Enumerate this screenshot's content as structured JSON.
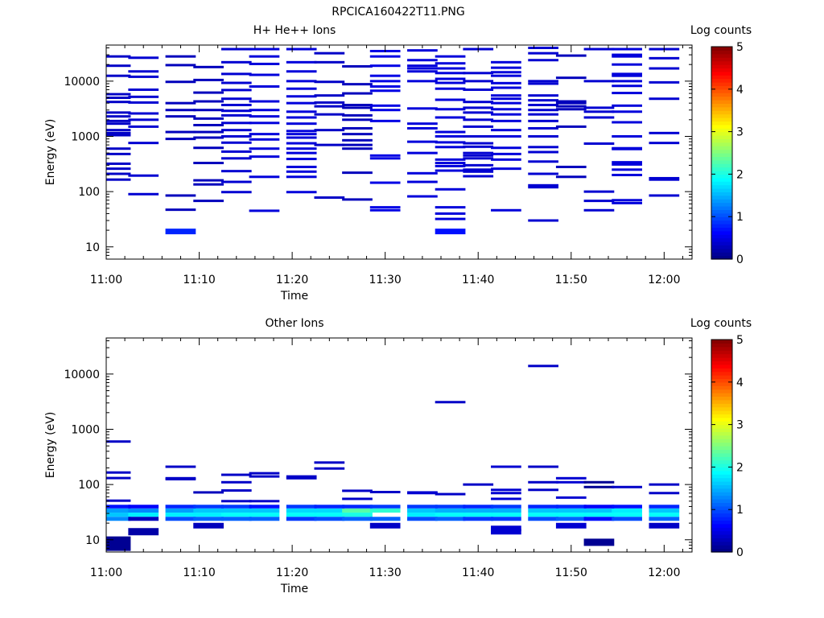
{
  "figure_title": "RPCICA160422T11.PNG",
  "colorbar": {
    "label": "Log counts",
    "ticks": [
      "0",
      "1",
      "2",
      "3",
      "4",
      "5"
    ],
    "colormap": [
      "#00007f",
      "#0000ff",
      "#007fff",
      "#00ffff",
      "#7fff7f",
      "#ffff00",
      "#ff7f00",
      "#ff0000",
      "#7f0000"
    ]
  },
  "chart_data": [
    {
      "type": "heatmap",
      "title": "H+ He++ Ions",
      "xlabel": "Time",
      "ylabel": "Energy (eV)",
      "x_range": [
        "11:00",
        "12:03"
      ],
      "y_scale": "log",
      "y_range": [
        6,
        45000
      ],
      "x_ticks": [
        "11:00",
        "11:10",
        "11:20",
        "11:30",
        "11:40",
        "11:50",
        "12:00"
      ],
      "y_ticks": [
        "10",
        "100",
        "1000",
        "10000"
      ],
      "z_label": "Log counts",
      "z_range": [
        0,
        5
      ],
      "time_bins": [
        "11:01",
        "11:04",
        "11:08",
        "11:11",
        "11:14",
        "11:17",
        "11:21",
        "11:24",
        "11:27",
        "11:30",
        "11:34",
        "11:37",
        "11:40",
        "11:43",
        "11:47",
        "11:50",
        "11:53",
        "11:56",
        "12:00"
      ],
      "cells": [
        {
          "t": 0,
          "e": [
            165,
            210,
            260,
            320,
            480,
            600,
            1050,
            1150,
            1300,
            1700,
            1900,
            2300,
            2700,
            4200,
            5000,
            5800,
            12500,
            19000,
            28000
          ],
          "v": 0.35
        },
        {
          "t": 1,
          "e": [
            90,
            195,
            760,
            1500,
            2000,
            2600,
            4100,
            5200,
            7000,
            12000,
            15000,
            26500
          ],
          "v": 0.4
        },
        {
          "t": 2,
          "e": [
            85,
            47,
            900,
            1200,
            2300,
            3000,
            4000,
            9700,
            19500,
            28000
          ],
          "v": 0.3
        },
        {
          "t": 2,
          "e": [
            19
          ],
          "v": 0.8
        },
        {
          "t": 3,
          "e": [
            68,
            135,
            160,
            330,
            620,
            950,
            1200,
            1600,
            2100,
            3000,
            4300,
            6200,
            10500,
            18000
          ],
          "v": 0.3
        },
        {
          "t": 4,
          "e": [
            98,
            150,
            235,
            400,
            530,
            770,
            1000,
            1300,
            1750,
            2400,
            2900,
            3700,
            4800,
            6900,
            9300,
            13500,
            22000,
            38000
          ],
          "v": 0.4
        },
        {
          "t": 5,
          "e": [
            45,
            185,
            430,
            600,
            880,
            1100,
            1750,
            2300,
            3000,
            4300,
            8000,
            13000,
            20500,
            28000,
            38000
          ],
          "v": 0.45
        },
        {
          "t": 6,
          "e": [
            98,
            185,
            230,
            280,
            390,
            500,
            600,
            750,
            950,
            1100,
            1250,
            1700,
            2200,
            2800,
            4000,
            5300,
            7300,
            10000,
            15000,
            22000,
            38000
          ],
          "v": 0.45
        },
        {
          "t": 7,
          "e": [
            78,
            700,
            1300,
            2500,
            3500,
            4100,
            5500,
            9700,
            22000,
            32000
          ],
          "v": 0.35
        },
        {
          "t": 8,
          "e": [
            72,
            220,
            600,
            700,
            850,
            1100,
            1400,
            2000,
            2400,
            3300,
            3700,
            6000,
            8800,
            18500
          ],
          "v": 0.3
        },
        {
          "t": 9,
          "e": [
            46,
            52,
            145,
            400,
            450,
            1900,
            3000,
            3600,
            6700,
            8000,
            10000,
            12500,
            19000,
            28000,
            35000
          ],
          "v": 0.5
        },
        {
          "t": 10,
          "e": [
            82,
            150,
            215,
            500,
            800,
            1400,
            1700,
            3200,
            10000,
            15000,
            17000,
            19000,
            24000,
            36000
          ],
          "v": 0.45
        },
        {
          "t": 11,
          "e": [
            32,
            40,
            52,
            110,
            240,
            290,
            330,
            380,
            640,
            780,
            1000,
            1200,
            2200,
            3100,
            4600,
            7300,
            9300,
            11000,
            14000,
            17000,
            21000,
            28000
          ],
          "v": 0.45
        },
        {
          "t": 11,
          "e": [
            19
          ],
          "v": 0.7
        },
        {
          "t": 12,
          "e": [
            190,
            230,
            250,
            300,
            400,
            450,
            500,
            650,
            750,
            1000,
            1500,
            2000,
            2700,
            3300,
            4200,
            7000,
            10000,
            14000,
            38000
          ],
          "v": 0.4
        },
        {
          "t": 13,
          "e": [
            46,
            260,
            380,
            480,
            620,
            1000,
            1300,
            1900,
            2500,
            3100,
            4000,
            4800,
            5500,
            7600,
            9200,
            12500,
            14500,
            17500,
            22000
          ],
          "v": 0.45
        },
        {
          "t": 14,
          "e": [
            30,
            120,
            130,
            210,
            350,
            520,
            640,
            1000,
            1400,
            1900,
            2500,
            3000,
            3700,
            4500,
            5500,
            9000,
            10000,
            24000,
            32000,
            40000
          ],
          "v": 0.4
        },
        {
          "t": 15,
          "e": [
            185,
            280,
            1500,
            3100,
            3500,
            4000,
            4300,
            11500,
            29000
          ],
          "v": 0.3
        },
        {
          "t": 16,
          "e": [
            46,
            68,
            100,
            740,
            2200,
            2800,
            3300,
            10000,
            38000
          ],
          "v": 0.4
        },
        {
          "t": 17,
          "e": [
            62,
            70,
            200,
            250,
            310,
            340,
            590,
            610,
            1000,
            1800,
            2800,
            3600,
            6100,
            8200,
            10000,
            12500,
            13500,
            20000,
            28000,
            30000,
            38000
          ],
          "v": 0.45
        },
        {
          "t": 18,
          "e": [
            85,
            165,
            175,
            760,
            1150,
            4800,
            9500,
            17000,
            26000,
            38000
          ],
          "v": 0.4
        }
      ]
    },
    {
      "type": "heatmap",
      "title": "Other Ions",
      "xlabel": "Time",
      "ylabel": "Energy (eV)",
      "x_range": [
        "11:00",
        "12:03"
      ],
      "y_scale": "log",
      "y_range": [
        6,
        45000
      ],
      "x_ticks": [
        "11:00",
        "11:10",
        "11:20",
        "11:30",
        "11:40",
        "11:50",
        "12:00"
      ],
      "y_ticks": [
        "10",
        "100",
        "1000",
        "10000"
      ],
      "z_label": "Log counts",
      "z_range": [
        0,
        5
      ],
      "time_bins": [
        "11:01",
        "11:04",
        "11:08",
        "11:11",
        "11:14",
        "11:17",
        "11:21",
        "11:24",
        "11:27",
        "11:30",
        "11:34",
        "11:37",
        "11:40",
        "11:43",
        "11:47",
        "11:50",
        "11:53",
        "11:56",
        "12:00"
      ],
      "bands": [
        {
          "e_lo": 31,
          "e_hi": 37,
          "values": [
            1.4,
            1.3,
            1.4,
            1.6,
            1.6,
            1.6,
            1.7,
            1.7,
            2.3,
            2.1,
            1.6,
            1.5,
            1.5,
            1.5,
            1.6,
            1.6,
            1.6,
            1.8,
            1.6
          ]
        },
        {
          "e_lo": 26,
          "e_hi": 31,
          "values": [
            1.6,
            1.8,
            1.8,
            1.8,
            1.9,
            1.9,
            1.9,
            1.9,
            2.0,
            0.0,
            1.8,
            1.9,
            1.9,
            1.9,
            1.9,
            1.9,
            1.9,
            1.9,
            1.9
          ]
        },
        {
          "e_lo": 22,
          "e_hi": 26,
          "values": [
            1.3,
            0.3,
            1.0,
            1.1,
            1.1,
            1.1,
            0.9,
            1.0,
            1.1,
            1.1,
            1.0,
            1.1,
            0.9,
            0.9,
            1.0,
            1.1,
            0.7,
            1.0,
            1.1
          ]
        },
        {
          "e_lo": 37,
          "e_hi": 43,
          "values": [
            0.7,
            0.6,
            0.8,
            0.9,
            0.9,
            0.7,
            0.9,
            0.8,
            0.8,
            0.9,
            0.9,
            0.9,
            0.8,
            0.9,
            0.8,
            0.8,
            0.6,
            0.7,
            0.8
          ]
        }
      ],
      "cells": [
        {
          "t": 0,
          "e": [
            51,
            131,
            165,
            600
          ],
          "v": 0.35
        },
        {
          "t": 0,
          "e": [
            8.5
          ],
          "v": 0.1,
          "height": "tall"
        },
        {
          "t": 1,
          "e": [
            14
          ],
          "v": 0.2
        },
        {
          "t": 2,
          "e": [
            210,
            125,
            130
          ],
          "v": 0.35
        },
        {
          "t": 3,
          "e": [
            72,
            18
          ],
          "v": 0.3
        },
        {
          "t": 4,
          "e": [
            150,
            110,
            78,
            50
          ],
          "v": 0.35
        },
        {
          "t": 5,
          "e": [
            160,
            140,
            50
          ],
          "v": 0.35
        },
        {
          "t": 6,
          "e": [
            140,
            130
          ],
          "v": 0.35
        },
        {
          "t": 7,
          "e": [
            250,
            195
          ],
          "v": 0.35
        },
        {
          "t": 8,
          "e": [
            77,
            55
          ],
          "v": 0.35
        },
        {
          "t": 9,
          "e": [
            73,
            18
          ],
          "v": 0.35
        },
        {
          "t": 10,
          "e": [
            72,
            70
          ],
          "v": 0.4
        },
        {
          "t": 11,
          "e": [
            3100,
            67
          ],
          "v": 0.35
        },
        {
          "t": 12,
          "e": [
            100
          ],
          "v": 0.35
        },
        {
          "t": 13,
          "e": [
            210,
            80,
            70,
            55,
            16,
            14
          ],
          "v": 0.4
        },
        {
          "t": 14,
          "e": [
            14000,
            210,
            110,
            80
          ],
          "v": 0.35
        },
        {
          "t": 15,
          "e": [
            130,
            110,
            58,
            18
          ],
          "v": 0.4
        },
        {
          "t": 16,
          "e": [
            110,
            90,
            9
          ],
          "v": 0.1
        },
        {
          "t": 17,
          "e": [
            90
          ],
          "v": 0.35
        },
        {
          "t": 18,
          "e": [
            100,
            70,
            18
          ],
          "v": 0.35
        }
      ]
    }
  ]
}
